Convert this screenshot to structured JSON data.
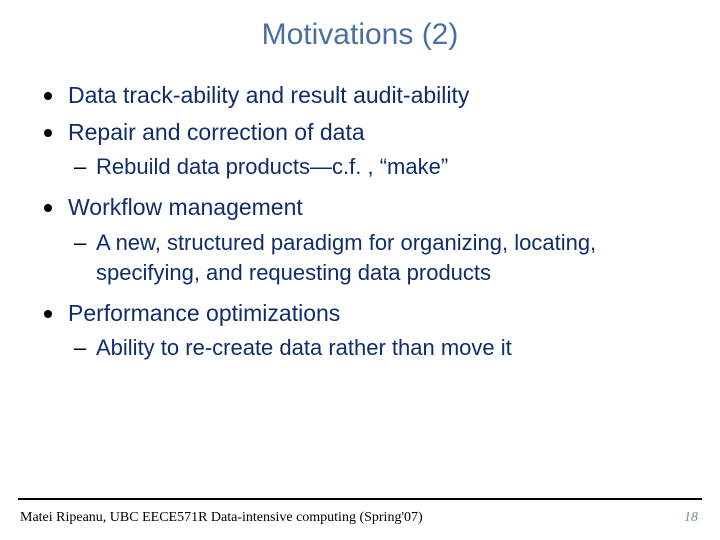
{
  "title": {
    "text": "Motivations (2)",
    "color": "#4a6fa0"
  },
  "accent_color": "#102d6b",
  "page_num_color": "#7a8aa8",
  "bullets": [
    {
      "text": "Data track-ability and result audit-ability",
      "subs": []
    },
    {
      "text": "Repair and correction of data",
      "subs": [
        "Rebuild data products—c.f. , “make”"
      ]
    },
    {
      "text": "Workflow management",
      "subs": [
        "A new, structured paradigm for organizing, locating, specifying, and requesting data products"
      ]
    },
    {
      "text": "Performance optimizations",
      "subs": [
        "Ability to re-create data rather than move it"
      ]
    }
  ],
  "footer": "Matei Ripeanu, UBC   EECE571R Data-intensive computing (Spring'07)",
  "page_number": "18"
}
